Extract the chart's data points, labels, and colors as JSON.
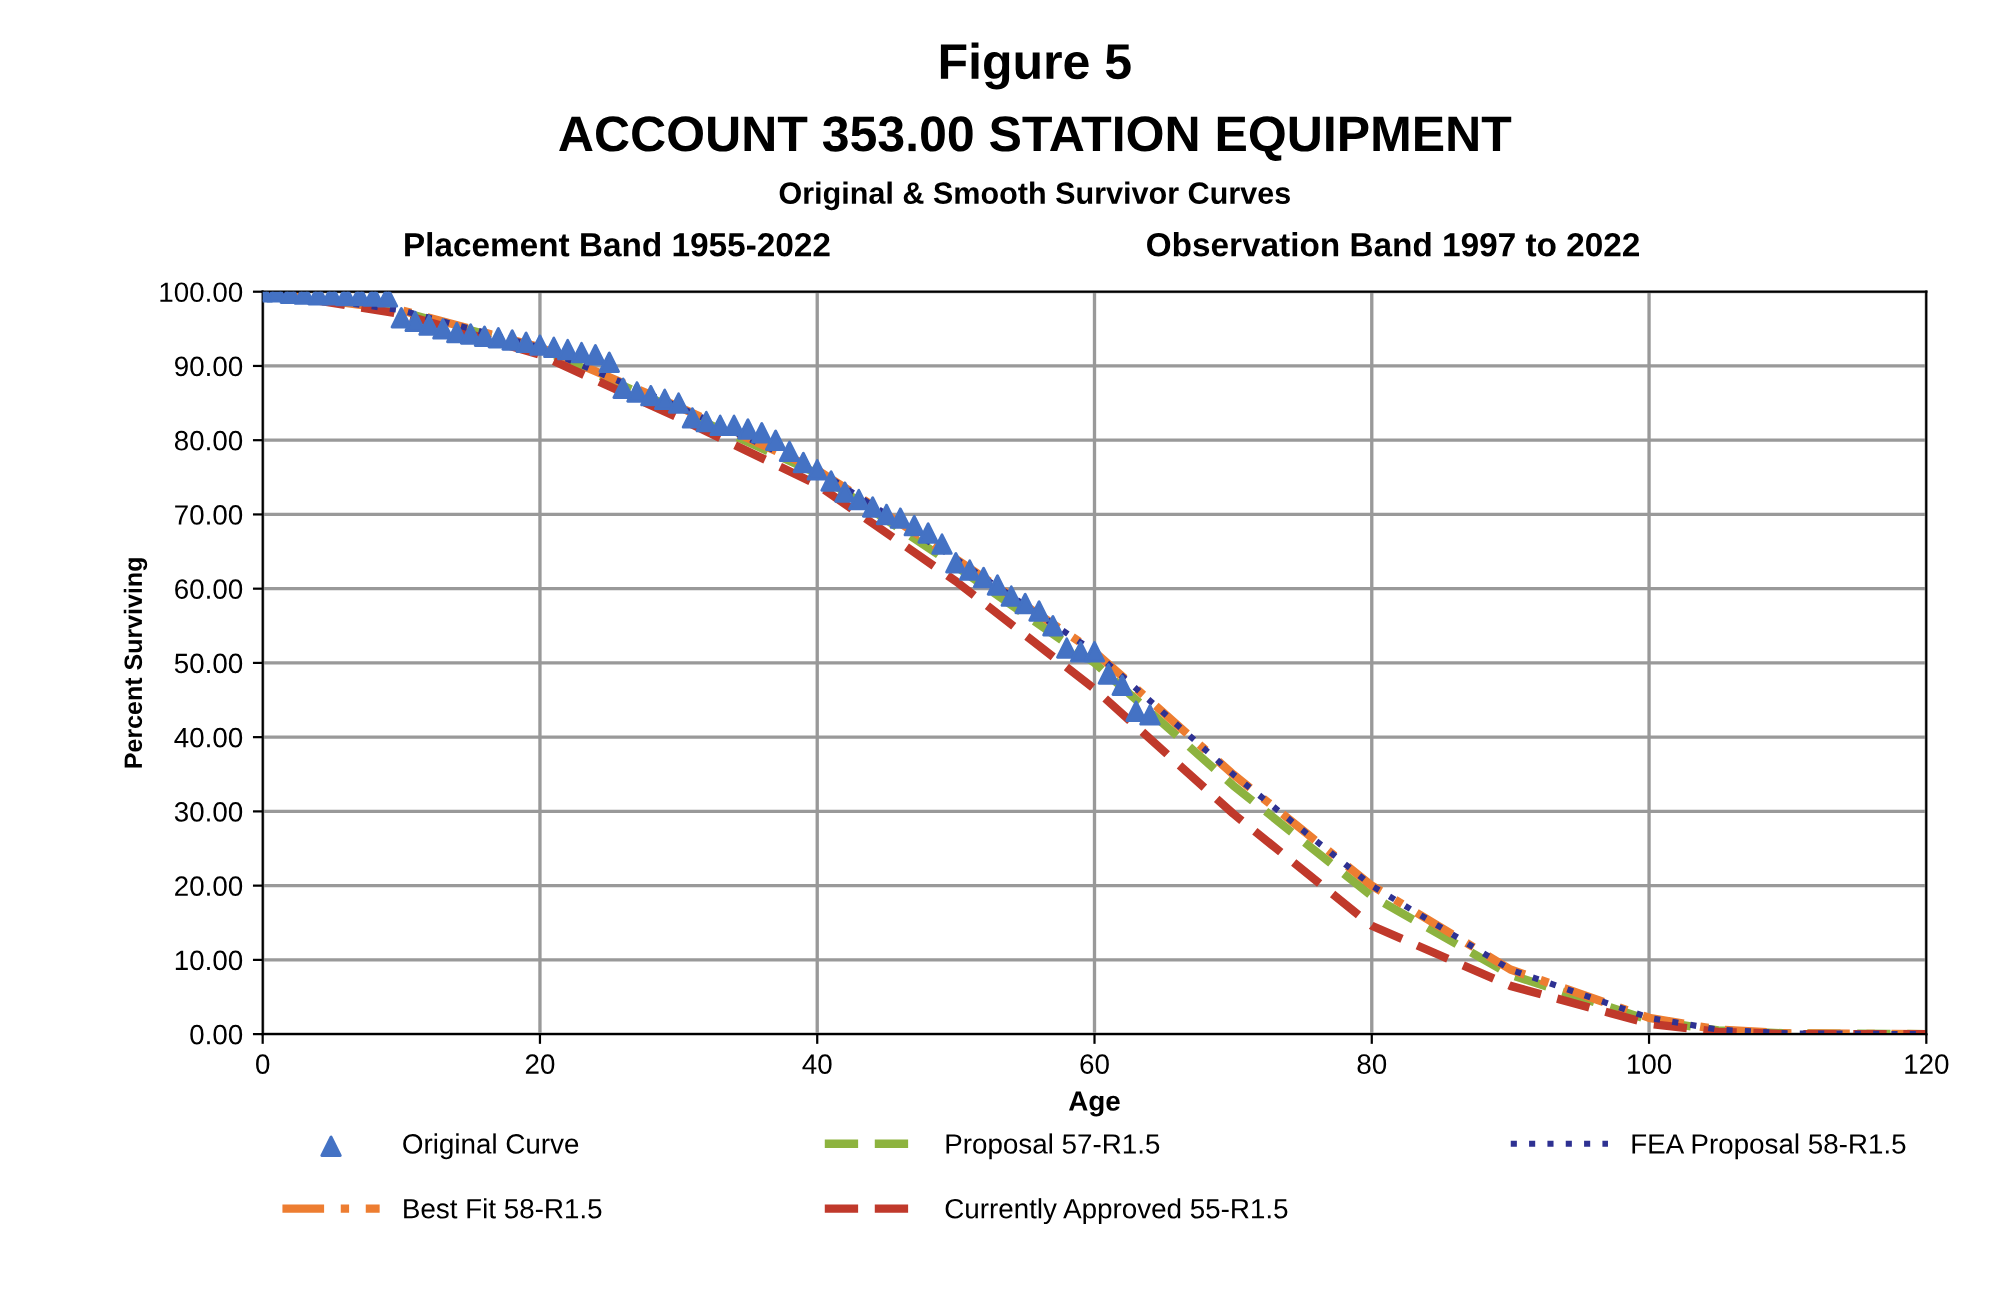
{
  "chart_data": {
    "type": "line",
    "title": "Figure 5",
    "subtitle": "ACCOUNT 353.00 STATION EQUIPMENT",
    "annotations": [
      "Original & Smooth Survivor Curves",
      "Placement Band 1955-2022",
      "Observation Band 1997 to 2022"
    ],
    "xlabel": "Age",
    "ylabel": "Percent Surviving",
    "xlim": [
      0,
      120
    ],
    "xticks": [
      0,
      20,
      40,
      60,
      80,
      100,
      120
    ],
    "ylim": [
      0,
      100
    ],
    "yticks": [
      {
        "value": 0,
        "label": "0.00"
      },
      {
        "value": 10,
        "label": "10.00"
      },
      {
        "value": 20,
        "label": "20.00"
      },
      {
        "value": 30,
        "label": "30.00"
      },
      {
        "value": 40,
        "label": "40.00"
      },
      {
        "value": 50,
        "label": "50.00"
      },
      {
        "value": 60,
        "label": "60.00"
      },
      {
        "value": 70,
        "label": "70.00"
      },
      {
        "value": 80,
        "label": "80.00"
      },
      {
        "value": 90,
        "label": "90.00"
      },
      {
        "value": 100,
        "label": "100.00"
      }
    ],
    "grid": true,
    "legend": "bottom",
    "series": [
      {
        "name": "Original Curve",
        "type": "scatter",
        "marker": "triangle",
        "color": "#4472c4",
        "x": [
          0,
          1,
          2,
          3,
          4,
          5,
          6,
          7,
          8,
          9,
          10,
          11,
          12,
          13,
          14,
          15,
          16,
          17,
          18,
          19,
          20,
          21,
          22,
          23,
          24,
          25,
          26,
          27,
          28,
          29,
          30,
          31,
          32,
          33,
          34,
          35,
          36,
          37,
          38,
          39,
          40,
          41,
          42,
          43,
          44,
          45,
          46,
          47,
          48,
          49,
          50,
          51,
          52,
          53,
          54,
          55,
          56,
          57,
          58,
          59,
          60,
          61,
          62,
          63,
          64
        ],
        "values": [
          100,
          100,
          99.8,
          99.7,
          99.6,
          99.6,
          99.5,
          99.5,
          99.4,
          99.3,
          96.5,
          96,
          95.5,
          95,
          94.5,
          94.3,
          94,
          93.8,
          93.5,
          93.2,
          92.8,
          92.5,
          92.2,
          91.8,
          91.5,
          90.5,
          87,
          86.5,
          86,
          85.5,
          85,
          83,
          82.5,
          82,
          82,
          81.5,
          81,
          80,
          78.5,
          77,
          76,
          74.5,
          73,
          72,
          71,
          70,
          69.5,
          68.5,
          67.5,
          66,
          63.5,
          62.5,
          61.5,
          60.5,
          59,
          58,
          57,
          55,
          52,
          51.5,
          51.5,
          48.5,
          47,
          43.5,
          43
        ]
      },
      {
        "name": "Proposal 57-R1.5",
        "line_style": "dashed",
        "color": "#8db33f",
        "x": [
          0,
          10,
          20,
          30,
          40,
          50,
          60,
          70,
          80,
          90,
          100,
          105,
          110,
          120
        ],
        "values": [
          100,
          97.3,
          92.3,
          84,
          75.5,
          63,
          50,
          33.5,
          18.6,
          8,
          1.9,
          0.5,
          0.1,
          0
        ]
      },
      {
        "name": "FEA Proposal 58-R1.5",
        "line_style": "dotted",
        "color": "#2e3192",
        "x": [
          0,
          10,
          20,
          30,
          40,
          50,
          60,
          70,
          80,
          90,
          100,
          105,
          110,
          120
        ],
        "values": [
          100,
          97.5,
          92.5,
          84.5,
          76,
          64,
          51.5,
          35,
          20,
          8.7,
          2.2,
          0.6,
          0.1,
          0
        ]
      },
      {
        "name": "Best Fit 58-R1.5",
        "line_style": "dashdot",
        "color": "#ed7d31",
        "x": [
          0,
          10,
          20,
          30,
          40,
          50,
          60,
          70,
          80,
          90,
          100,
          105,
          110,
          120
        ],
        "values": [
          100,
          97.5,
          92.5,
          84.5,
          76,
          64,
          51.5,
          35,
          20,
          8.7,
          2.2,
          0.6,
          0.1,
          0
        ]
      },
      {
        "name": "Currently Approved 55-R1.5",
        "line_style": "dashed",
        "color": "#c0392b",
        "x": [
          0,
          10,
          20,
          30,
          40,
          50,
          60,
          70,
          80,
          90,
          100,
          105,
          110,
          120
        ],
        "values": [
          100,
          97,
          91.5,
          83,
          74,
          61,
          46.5,
          29.7,
          14.6,
          6.5,
          1.4,
          0.3,
          0,
          0
        ]
      }
    ]
  }
}
